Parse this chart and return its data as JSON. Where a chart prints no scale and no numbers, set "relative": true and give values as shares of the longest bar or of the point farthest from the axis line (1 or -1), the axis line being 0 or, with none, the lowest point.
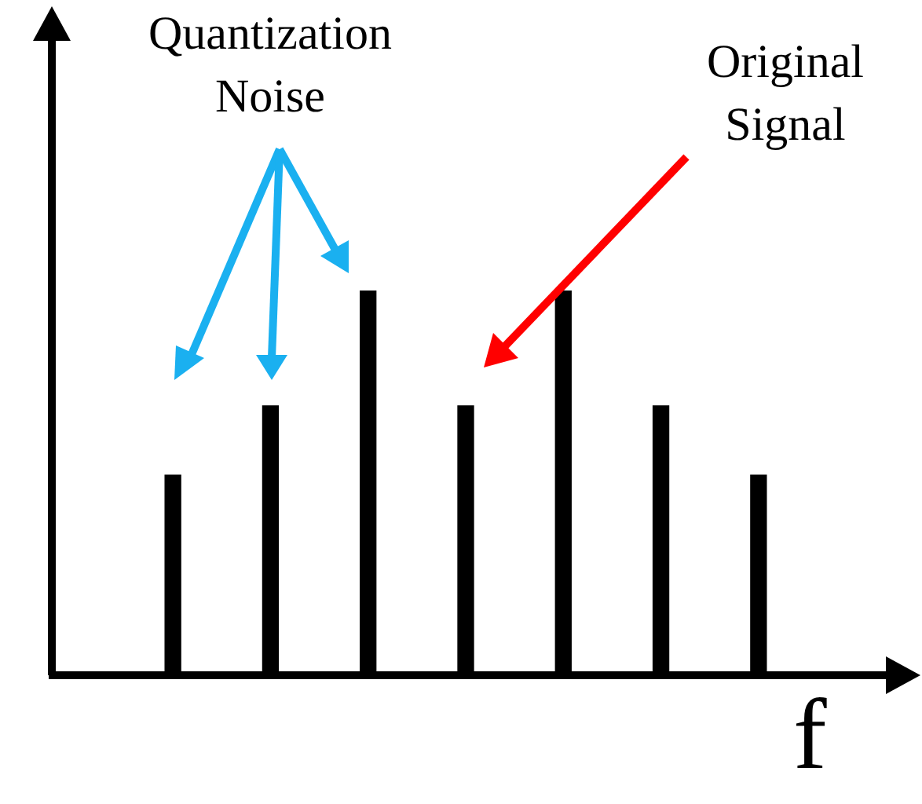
{
  "chart_data": {
    "type": "bar",
    "relative": true,
    "categories": [
      null,
      null,
      null,
      null,
      null,
      null,
      null
    ],
    "series": [
      {
        "color": "#000000",
        "values": [
          0.52,
          0.7,
          1,
          0.7,
          1,
          0.7,
          0.52
        ]
      }
    ],
    "xlabel": "f",
    "annotations": [
      "Quantization Noise",
      "Original Signal"
    ],
    "legend": false
  }
}
